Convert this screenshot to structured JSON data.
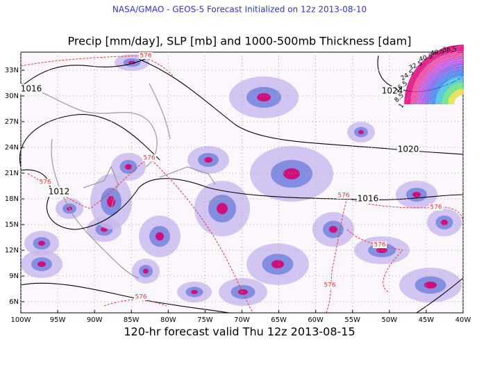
{
  "header": {
    "source": "NASA/GMAO - GEOS-5 Forecast Initialized on 12z 2013-08-10",
    "title": "Precip [mm/day], SLP [mb] and 1000-500mb Thickness [dam]",
    "footer": "120-hr forecast valid Thu 12z 2013-08-15"
  },
  "map": {
    "lon_labels": [
      "100W",
      "95W",
      "90W",
      "85W",
      "80W",
      "75W",
      "70W",
      "65W",
      "60W",
      "55W",
      "50W",
      "45W",
      "40W"
    ],
    "lat_labels": [
      "6N",
      "9N",
      "12N",
      "15N",
      "18N",
      "21N",
      "24N",
      "27N",
      "30N",
      "33N"
    ],
    "slp_labels": [
      "1016",
      "1024",
      "1020",
      "1012",
      "1016"
    ],
    "thickness_labels": [
      "576",
      "576",
      "576",
      "576",
      "576",
      "576",
      "576",
      "576"
    ],
    "colorbar_labels": [
      "56.5",
      "48.5",
      "40.5",
      "32.5",
      "24.5",
      "16.5",
      "8.5",
      "1"
    ]
  }
}
